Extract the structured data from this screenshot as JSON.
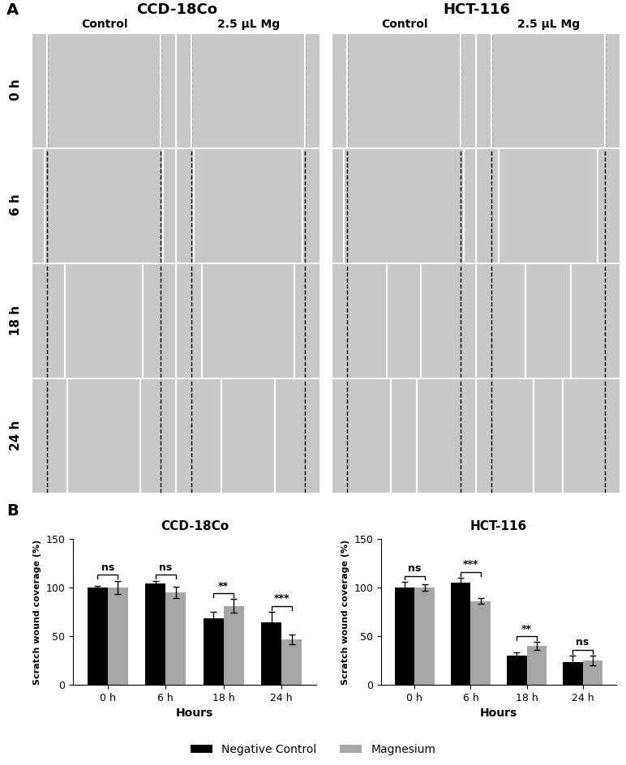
{
  "panel_a": {
    "label": "A",
    "groups": [
      {
        "title": "CCD-18Co",
        "columns": [
          "Control",
          "2.5 µL Mg"
        ]
      },
      {
        "title": "HCT-116",
        "columns": [
          "Control",
          "2.5 µL Mg"
        ]
      }
    ],
    "rows": [
      "0 h",
      "6 h",
      "18 h",
      "24 h"
    ]
  },
  "panel_b": {
    "label": "B"
  },
  "chart_data": [
    {
      "type": "bar",
      "title": "CCD-18Co",
      "x_label": "Hours",
      "y_label": "Scratch wound coverage (%)",
      "categories": [
        "0 h",
        "6 h",
        "18 h",
        "24 h"
      ],
      "series": [
        {
          "name": "Negative Control",
          "color": "#000000",
          "values": [
            100,
            104,
            68,
            64
          ],
          "errors": [
            2,
            3,
            7,
            11
          ]
        },
        {
          "name": "Magnesium",
          "color": "#a6a6a6",
          "values": [
            100,
            95,
            81,
            47
          ],
          "errors": [
            7,
            6,
            7,
            5
          ]
        }
      ],
      "significance": [
        "ns",
        "ns",
        "**",
        "***"
      ],
      "ylim": [
        0,
        150
      ],
      "yticks": [
        0,
        50,
        100,
        150
      ],
      "legend": "lower center"
    },
    {
      "type": "bar",
      "title": "HCT-116",
      "x_label": "Hours",
      "y_label": "Scratch wound coverage (%)",
      "categories": [
        "0 h",
        "6 h",
        "18 h",
        "24 h"
      ],
      "series": [
        {
          "name": "Negative Control",
          "color": "#000000",
          "values": [
            100,
            105,
            30,
            23
          ],
          "errors": [
            6,
            5,
            3,
            7
          ]
        },
        {
          "name": "Magnesium",
          "color": "#a6a6a6",
          "values": [
            100,
            86,
            40,
            25
          ],
          "errors": [
            3,
            3,
            4,
            5
          ]
        }
      ],
      "significance": [
        "ns",
        "***",
        "**",
        "ns"
      ],
      "ylim": [
        0,
        150
      ],
      "yticks": [
        0,
        50,
        100,
        150
      ],
      "legend": "lower center"
    }
  ]
}
